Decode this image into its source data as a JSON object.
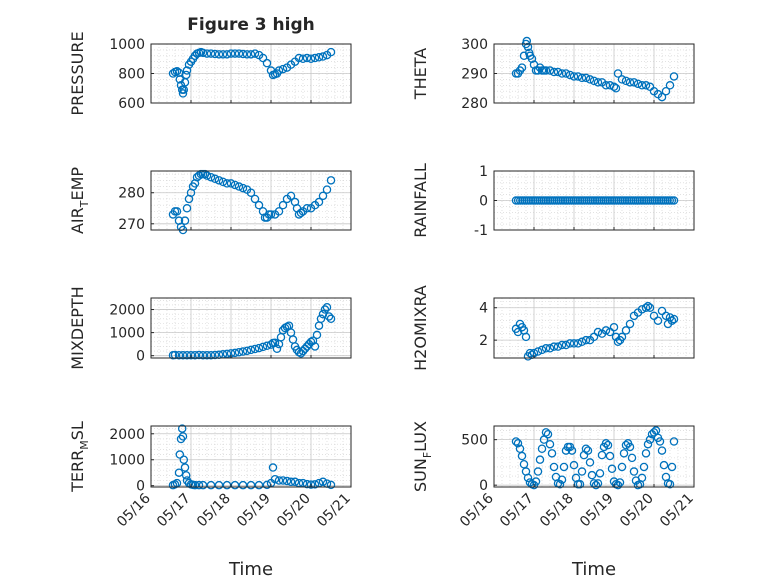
{
  "figure": {
    "title": "Figure 3 high",
    "xlabel": "Time",
    "xticks": [
      "05/16",
      "05/17",
      "05/18",
      "05/19",
      "05/20",
      "05/21"
    ],
    "marker_color": "#0072BD",
    "grid": "on (major and minor)"
  },
  "chart_data": [
    {
      "type": "scatter",
      "id": "pressure",
      "ylabel": "PRESSURE",
      "ylim": [
        600,
        1000
      ],
      "yticks": [
        "600",
        "800",
        "1000"
      ],
      "xlim": [
        0,
        5
      ],
      "x": [
        0.55,
        0.6,
        0.65,
        0.7,
        0.72,
        0.75,
        0.78,
        0.8,
        0.82,
        0.85,
        0.88,
        0.9,
        0.95,
        1.0,
        1.05,
        1.1,
        1.15,
        1.2,
        1.25,
        1.3,
        1.4,
        1.5,
        1.6,
        1.7,
        1.8,
        1.9,
        2.0,
        2.1,
        2.2,
        2.3,
        2.4,
        2.5,
        2.6,
        2.7,
        2.8,
        2.9,
        3.0,
        3.05,
        3.1,
        3.15,
        3.2,
        3.3,
        3.4,
        3.5,
        3.6,
        3.7,
        3.8,
        3.9,
        4.0,
        4.1,
        4.2,
        4.3,
        4.4,
        4.5
      ],
      "y": [
        800,
        810,
        815,
        805,
        760,
        720,
        690,
        665,
        690,
        740,
        790,
        820,
        860,
        880,
        900,
        920,
        935,
        940,
        945,
        940,
        935,
        935,
        932,
        930,
        930,
        930,
        935,
        935,
        935,
        932,
        930,
        930,
        935,
        925,
        905,
        870,
        820,
        790,
        795,
        800,
        820,
        830,
        840,
        860,
        880,
        905,
        900,
        905,
        900,
        905,
        910,
        915,
        925,
        945
      ]
    },
    {
      "type": "scatter",
      "id": "theta",
      "ylabel": "THETA",
      "ylim": [
        280,
        300
      ],
      "yticks": [
        "280",
        "290",
        "300"
      ],
      "xlim": [
        0,
        5
      ],
      "x": [
        0.55,
        0.6,
        0.65,
        0.7,
        0.75,
        0.8,
        0.82,
        0.85,
        0.88,
        0.9,
        0.95,
        1.0,
        1.05,
        1.1,
        1.15,
        1.2,
        1.25,
        1.3,
        1.4,
        1.5,
        1.6,
        1.7,
        1.8,
        1.9,
        2.0,
        2.1,
        2.2,
        2.3,
        2.4,
        2.5,
        2.6,
        2.7,
        2.8,
        2.9,
        3.0,
        3.05,
        3.1,
        3.2,
        3.3,
        3.4,
        3.5,
        3.6,
        3.7,
        3.8,
        3.9,
        4.0,
        4.1,
        4.2,
        4.3,
        4.4,
        4.5
      ],
      "y": [
        290,
        290,
        291,
        292,
        296,
        300,
        301,
        299,
        297,
        296,
        295,
        293,
        291,
        291,
        292,
        291,
        291,
        291,
        291,
        290.5,
        290.5,
        290,
        290,
        289.5,
        289,
        289,
        288.5,
        288.5,
        288,
        287.5,
        287,
        287,
        286,
        286,
        285.5,
        285,
        290,
        288,
        287.5,
        287,
        287,
        286.5,
        286,
        286,
        285.5,
        284,
        283,
        282,
        284,
        286,
        289
      ]
    },
    {
      "type": "scatter",
      "id": "airtemp",
      "ylabel": "AIR",
      "ylabel_sub": "T",
      "ylabel_tail": "EMP",
      "ylim": [
        268,
        287
      ],
      "yticks": [
        "270",
        "280"
      ],
      "xlim": [
        0,
        5
      ],
      "x": [
        0.55,
        0.6,
        0.65,
        0.7,
        0.75,
        0.8,
        0.85,
        0.9,
        0.95,
        1.0,
        1.05,
        1.1,
        1.15,
        1.2,
        1.25,
        1.3,
        1.35,
        1.4,
        1.5,
        1.6,
        1.7,
        1.8,
        1.9,
        2.0,
        2.1,
        2.2,
        2.3,
        2.4,
        2.5,
        2.6,
        2.7,
        2.8,
        2.85,
        2.9,
        2.95,
        3.0,
        3.1,
        3.2,
        3.3,
        3.4,
        3.5,
        3.6,
        3.65,
        3.7,
        3.75,
        3.8,
        3.9,
        4.0,
        4.1,
        4.2,
        4.3,
        4.4,
        4.5
      ],
      "y": [
        273,
        274,
        274,
        271,
        269,
        268,
        271,
        275,
        278,
        280,
        282,
        283,
        285,
        285.5,
        286,
        286,
        286,
        285.5,
        285,
        284.5,
        284,
        283.5,
        283,
        283,
        282.5,
        282,
        281.5,
        281,
        280,
        278,
        276,
        274,
        272,
        272,
        273,
        273,
        273,
        274,
        276,
        278,
        279,
        277,
        275,
        273,
        273.5,
        274,
        275,
        275,
        276,
        277,
        279,
        281,
        284
      ]
    },
    {
      "type": "scatter",
      "id": "rainfall",
      "ylabel": "RAINFALL",
      "ylim": [
        -1,
        1
      ],
      "yticks": [
        "-1",
        "0",
        "1"
      ],
      "xlim": [
        0,
        5
      ],
      "x_range": [
        0.55,
        4.5
      ],
      "y": [
        0
      ]
    },
    {
      "type": "scatter",
      "id": "mixdepth",
      "ylabel": "MIXDEPTH",
      "ylim": [
        -100,
        2500
      ],
      "yticks": [
        "0",
        "1000",
        "2000"
      ],
      "xlim": [
        0,
        5
      ],
      "x": [
        0.55,
        0.6,
        0.7,
        0.8,
        0.9,
        1.0,
        1.1,
        1.2,
        1.3,
        1.4,
        1.5,
        1.6,
        1.7,
        1.8,
        1.9,
        2.0,
        2.1,
        2.2,
        2.3,
        2.4,
        2.5,
        2.6,
        2.7,
        2.8,
        2.9,
        3.0,
        3.05,
        3.1,
        3.15,
        3.2,
        3.25,
        3.3,
        3.35,
        3.4,
        3.45,
        3.5,
        3.55,
        3.6,
        3.65,
        3.7,
        3.75,
        3.8,
        3.85,
        3.9,
        3.95,
        4.0,
        4.05,
        4.1,
        4.15,
        4.2,
        4.25,
        4.3,
        4.35,
        4.4,
        4.45,
        4.5
      ],
      "y": [
        20,
        30,
        20,
        20,
        20,
        20,
        20,
        30,
        20,
        20,
        20,
        30,
        40,
        60,
        80,
        100,
        120,
        150,
        180,
        210,
        250,
        290,
        330,
        380,
        430,
        480,
        550,
        560,
        300,
        500,
        800,
        1100,
        1200,
        1250,
        1300,
        1000,
        700,
        400,
        250,
        150,
        100,
        200,
        300,
        400,
        500,
        600,
        650,
        400,
        900,
        1300,
        1600,
        1800,
        2000,
        2100,
        1700,
        1600
      ]
    },
    {
      "type": "scatter",
      "id": "h2omixra",
      "ylabel": "H2OMIXRA",
      "ylim": [
        0.9,
        4.6
      ],
      "yticks": [
        "2",
        "4"
      ],
      "xlim": [
        0,
        5
      ],
      "x": [
        0.55,
        0.6,
        0.65,
        0.7,
        0.75,
        0.8,
        0.85,
        0.9,
        0.95,
        1.0,
        1.1,
        1.2,
        1.3,
        1.4,
        1.5,
        1.6,
        1.7,
        1.8,
        1.9,
        2.0,
        2.1,
        2.2,
        2.3,
        2.4,
        2.5,
        2.6,
        2.7,
        2.8,
        2.9,
        3.0,
        3.05,
        3.1,
        3.15,
        3.2,
        3.3,
        3.4,
        3.5,
        3.6,
        3.7,
        3.8,
        3.85,
        3.9,
        4.0,
        4.1,
        4.2,
        4.3,
        4.35,
        4.4,
        4.45,
        4.5
      ],
      "y": [
        2.7,
        2.5,
        3.0,
        2.8,
        2.6,
        2.2,
        1.0,
        1.2,
        1.1,
        1.2,
        1.3,
        1.4,
        1.5,
        1.5,
        1.6,
        1.6,
        1.7,
        1.7,
        1.8,
        1.8,
        1.8,
        1.9,
        2.0,
        2.0,
        2.2,
        2.5,
        2.4,
        2.6,
        2.5,
        2.8,
        2.2,
        1.9,
        2.0,
        2.2,
        2.6,
        3.0,
        3.5,
        3.7,
        3.9,
        4.0,
        4.1,
        4.0,
        3.5,
        3.2,
        3.8,
        3.5,
        3.0,
        3.4,
        3.2,
        3.3
      ]
    },
    {
      "type": "scatter",
      "id": "terrmsl",
      "ylabel": "TERR",
      "ylabel_sub": "M",
      "ylabel_tail": "SL",
      "ylim": [
        -50,
        2300
      ],
      "yticks": [
        "0",
        "1000",
        "2000"
      ],
      "xlim": [
        0,
        5
      ],
      "x": [
        0.55,
        0.6,
        0.65,
        0.7,
        0.72,
        0.75,
        0.78,
        0.8,
        0.82,
        0.85,
        0.88,
        0.9,
        0.95,
        1.0,
        1.05,
        1.1,
        1.2,
        1.3,
        1.5,
        1.7,
        1.9,
        2.1,
        2.3,
        2.5,
        2.7,
        2.9,
        3.0,
        3.05,
        3.1,
        3.2,
        3.3,
        3.4,
        3.5,
        3.6,
        3.7,
        3.8,
        3.9,
        4.0,
        4.1,
        4.2,
        4.3,
        4.4,
        4.5
      ],
      "y": [
        20,
        50,
        100,
        500,
        1200,
        1800,
        2200,
        1900,
        1000,
        700,
        400,
        200,
        100,
        50,
        30,
        20,
        20,
        20,
        20,
        20,
        20,
        20,
        20,
        20,
        20,
        30,
        100,
        700,
        250,
        200,
        200,
        180,
        150,
        150,
        100,
        100,
        60,
        40,
        50,
        100,
        150,
        80,
        30
      ]
    },
    {
      "type": "scatter",
      "id": "sunflux",
      "ylabel": "SUN",
      "ylabel_sub": "F",
      "ylabel_tail": "LUX",
      "ylim": [
        -20,
        650
      ],
      "yticks": [
        "0",
        "500"
      ],
      "xlim": [
        0,
        5
      ],
      "x": [
        0.55,
        0.6,
        0.65,
        0.7,
        0.75,
        0.8,
        0.85,
        0.9,
        0.95,
        1.0,
        1.05,
        1.1,
        1.15,
        1.2,
        1.25,
        1.3,
        1.35,
        1.4,
        1.45,
        1.5,
        1.55,
        1.6,
        1.65,
        1.7,
        1.75,
        1.8,
        1.85,
        1.9,
        1.95,
        2.0,
        2.05,
        2.1,
        2.15,
        2.2,
        2.25,
        2.3,
        2.35,
        2.4,
        2.45,
        2.5,
        2.55,
        2.6,
        2.65,
        2.7,
        2.75,
        2.8,
        2.85,
        2.9,
        2.95,
        3.0,
        3.05,
        3.1,
        3.15,
        3.2,
        3.25,
        3.3,
        3.35,
        3.4,
        3.45,
        3.5,
        3.55,
        3.6,
        3.65,
        3.7,
        3.75,
        3.8,
        3.85,
        3.9,
        3.95,
        4.0,
        4.05,
        4.1,
        4.15,
        4.2,
        4.25,
        4.3,
        4.35,
        4.4,
        4.45,
        4.5
      ],
      "y": [
        480,
        460,
        400,
        320,
        230,
        150,
        80,
        30,
        10,
        0,
        40,
        150,
        280,
        400,
        500,
        580,
        560,
        450,
        350,
        200,
        90,
        20,
        10,
        60,
        200,
        380,
        420,
        420,
        380,
        220,
        80,
        10,
        10,
        150,
        330,
        400,
        380,
        250,
        110,
        20,
        0,
        20,
        130,
        330,
        420,
        460,
        440,
        320,
        180,
        40,
        10,
        0,
        30,
        200,
        350,
        440,
        460,
        420,
        300,
        150,
        50,
        0,
        10,
        80,
        200,
        350,
        450,
        500,
        560,
        580,
        600,
        520,
        480,
        380,
        220,
        90,
        20,
        10,
        200,
        480
      ]
    }
  ]
}
